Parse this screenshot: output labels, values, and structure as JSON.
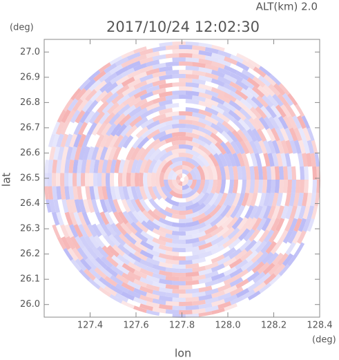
{
  "chart_data": {
    "type": "radar-ppi",
    "title": "2017/10/24 12:02:30",
    "subtitle": "ALT(km) 2.0",
    "x_label": "lon",
    "y_label": "lat",
    "x_unit": "(deg)",
    "y_unit": "(deg)",
    "xlim": [
      127.2,
      128.4
    ],
    "ylim": [
      25.95,
      27.05
    ],
    "xticks": [
      127.4,
      127.6,
      127.8,
      {
        "value": 128.0,
        "label": "128.0"
      },
      128.2,
      128.4
    ],
    "yticks": [
      {
        "value": 26.0,
        "label": "26.0"
      },
      26.1,
      26.2,
      26.3,
      26.4,
      26.5,
      26.6,
      26.7,
      26.8,
      26.9,
      {
        "value": 27.0,
        "label": "27.0"
      }
    ],
    "positive_color": "#f4a0a0",
    "negative_color": "#a8a8f4"
  }
}
